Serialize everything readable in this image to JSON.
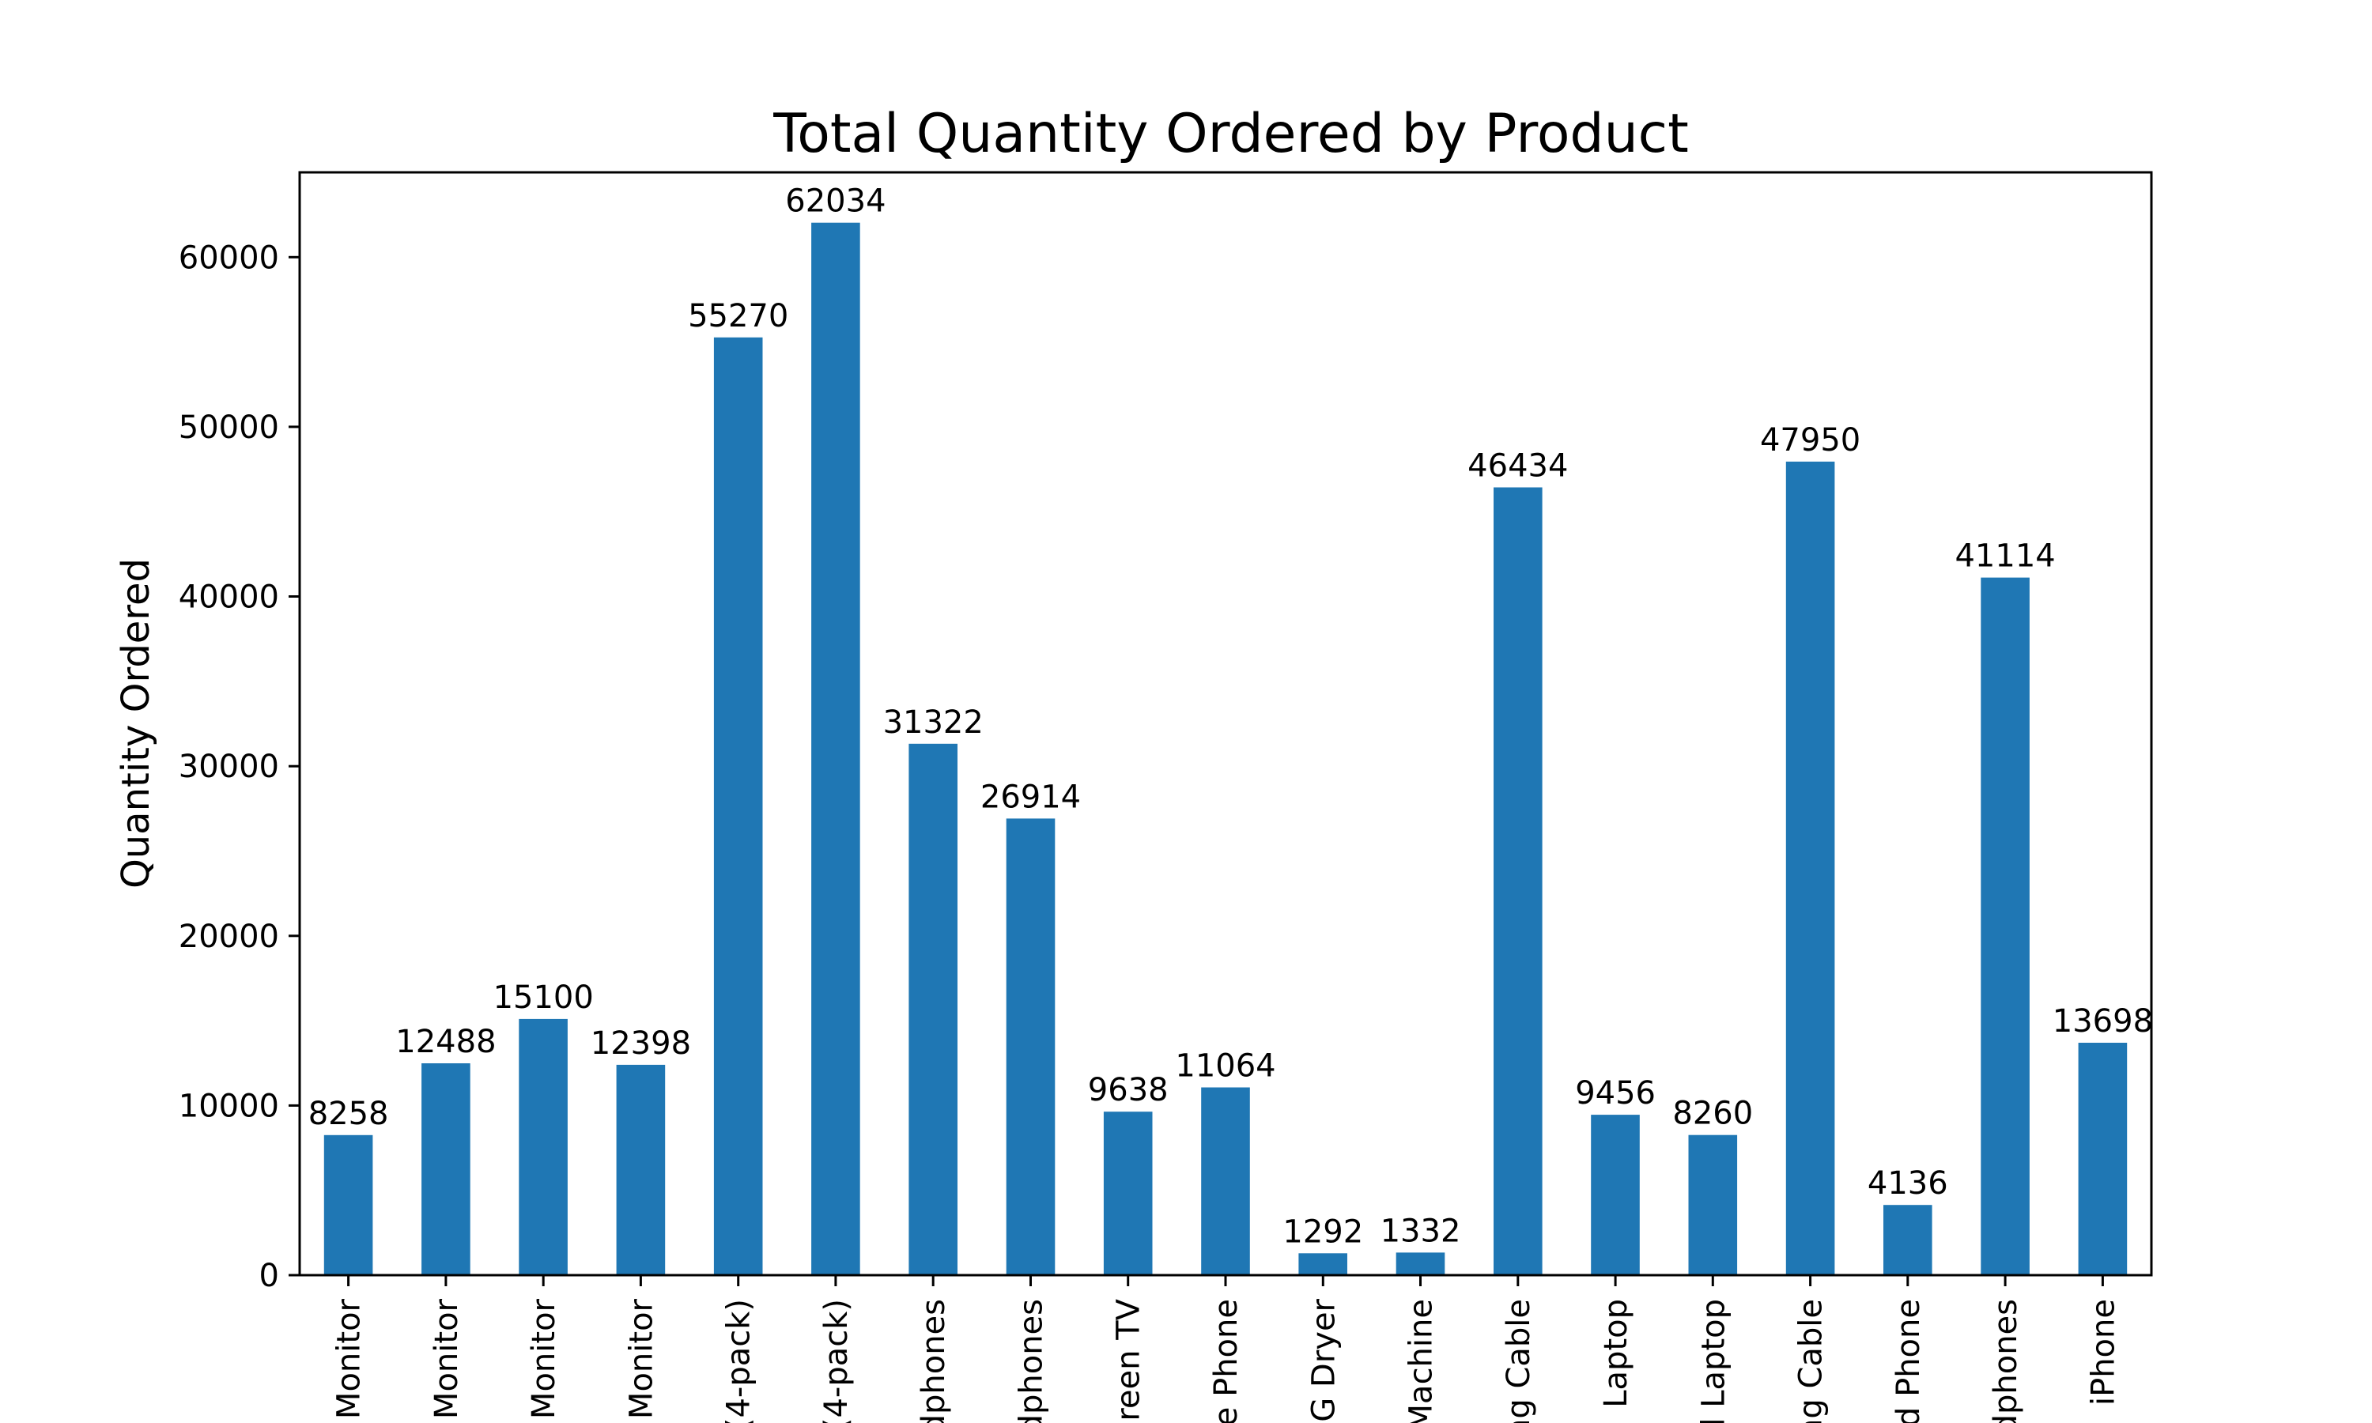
{
  "chart_data": {
    "type": "bar",
    "title": "Total Quantity Ordered by Product",
    "xlabel": "",
    "ylabel": "Quantity Ordered",
    "ylim": [
      0,
      65000
    ],
    "yticks": [
      0,
      10000,
      20000,
      30000,
      40000,
      50000,
      60000
    ],
    "grid": false,
    "legend": "none",
    "bar_color": "#1f77b4",
    "categories": [
      "Monitor",
      "Monitor",
      "Monitor",
      "Monitor",
      "(4-pack)",
      "(4-pack)",
      "dphones",
      "dphones",
      "creen TV",
      "e Phone",
      "G Dryer",
      "Machine",
      "ng Cable",
      "Laptop",
      "d Laptop",
      "ng Cable",
      "d Phone",
      "dphones",
      "iPhone"
    ],
    "values": [
      8258,
      12488,
      15100,
      12398,
      55270,
      62034,
      31322,
      26914,
      9638,
      11064,
      1292,
      1332,
      46434,
      9456,
      8260,
      47950,
      4136,
      41114,
      13698
    ]
  }
}
